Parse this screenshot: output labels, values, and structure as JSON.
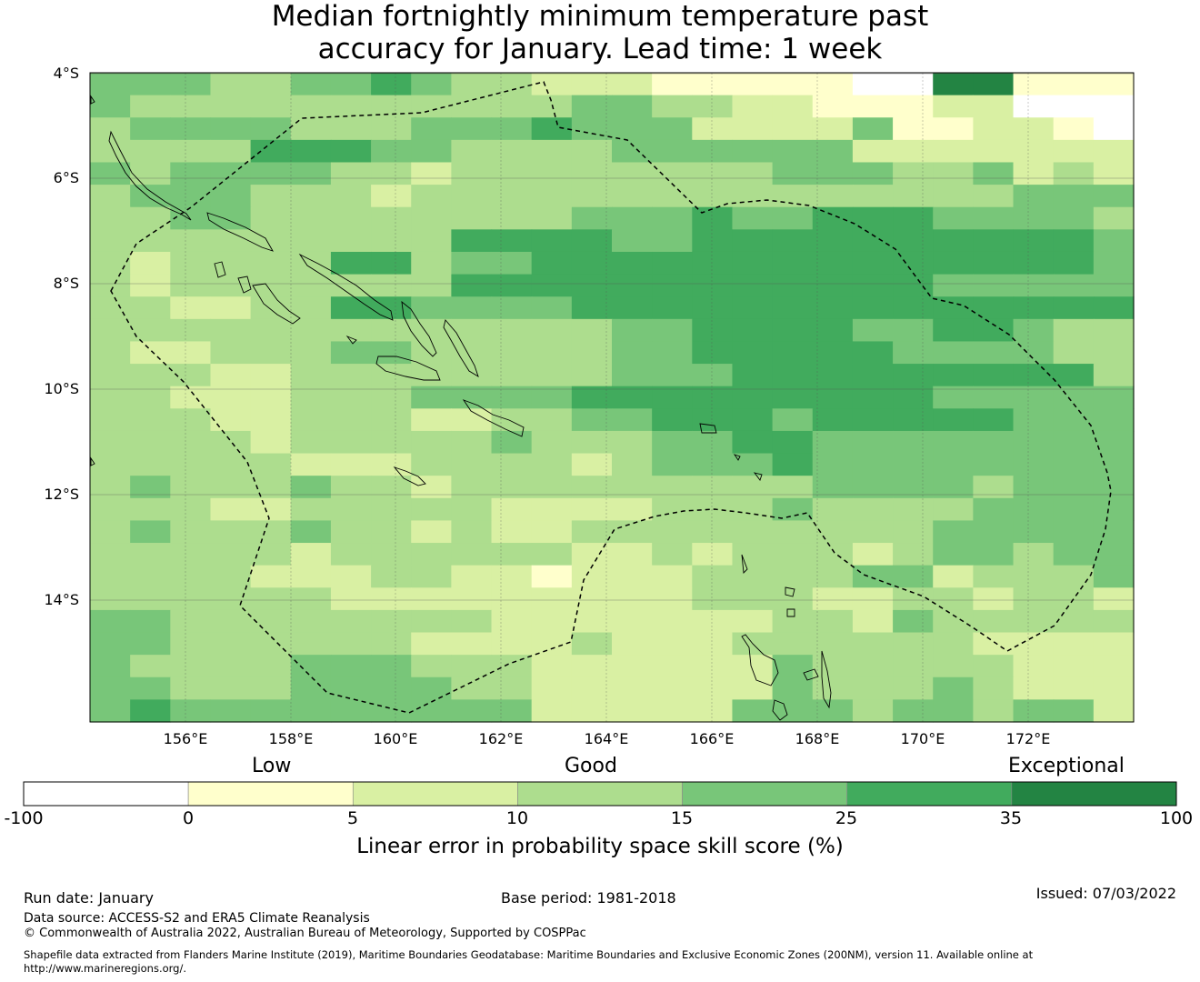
{
  "title": {
    "line1": "Median fortnightly minimum temperature past",
    "line2": "accuracy for January. Lead time: 1 week"
  },
  "axes": {
    "lat_labels": [
      "4°S",
      "6°S",
      "8°S",
      "10°S",
      "12°S",
      "14°S"
    ],
    "lon_labels": [
      "156°E",
      "158°E",
      "160°E",
      "162°E",
      "164°E",
      "166°E",
      "168°E",
      "170°E",
      "172°E"
    ]
  },
  "map": {
    "region": "Solomon Islands and Vanuatu EEZ",
    "rows": [
      "44433445433222111110066111",
      "43333333333344332211122000",
      "34444333444544422224112210",
      "33335554433334444442222222",
      "43444433233333333444334232",
      "34443332333333333333333444",
      "33443333333344454455544443",
      "33333333355554455555555554",
      "32333355344555555555555554",
      "32333333355555555555544444",
      "33223355444455555555555555",
      "33333333333334455554455433",
      "32233344333334455555444433",
      "33322333333334445555555553",
      "33222333444455555555544444",
      "33322333223344555455555444",
      "33332333334333445544444444",
      "33333222333323444544444444",
      "34333433233333333344443444",
      "33322333332222333433334444",
      "34333433232233333333344444",
      "33333233333322323332344344",
      "33332223322122233334423334",
      "33333322222222233322332332",
      "44333333332222222332433333",
      "44333333222232223333332222",
      "43333444333222222433333222",
      "44333444433222222433343222",
      "45444444444222224443443442"
    ],
    "colors": [
      "#ffffff",
      "#ffffcc",
      "#d9f0a3",
      "#addd8e",
      "#78c679",
      "#41ab5d",
      "#238443"
    ]
  },
  "colorbar": {
    "categories": [
      "Low",
      "Good",
      "Exceptional"
    ],
    "ticks": [
      "-100",
      "0",
      "5",
      "10",
      "15",
      "25",
      "35",
      "100"
    ],
    "colors": [
      "#ffffff",
      "#ffffcc",
      "#d9f0a3",
      "#addd8e",
      "#78c679",
      "#41ab5d",
      "#238443"
    ],
    "label": "Linear error in probability space skill score (%)"
  },
  "footer": {
    "run_date": "Run date: January",
    "base_period": "Base period: 1981-2018",
    "issued": "Issued: 07/03/2022",
    "data_source": "Data source: ACCESS-S2 and ERA5 Climate Reanalysis",
    "copyright": "© Commonwealth of Australia 2022, Australian Bureau of Meteorology, Supported by COSPPac",
    "shapefile_line1": "Shapefile data extracted from Flanders Marine Institute (2019), Maritime Boundaries Geodatabase: Maritime Boundaries and Exclusive Economic Zones (200NM), version 11. Available online at",
    "shapefile_line2": "http://www.marineregions.org/."
  }
}
